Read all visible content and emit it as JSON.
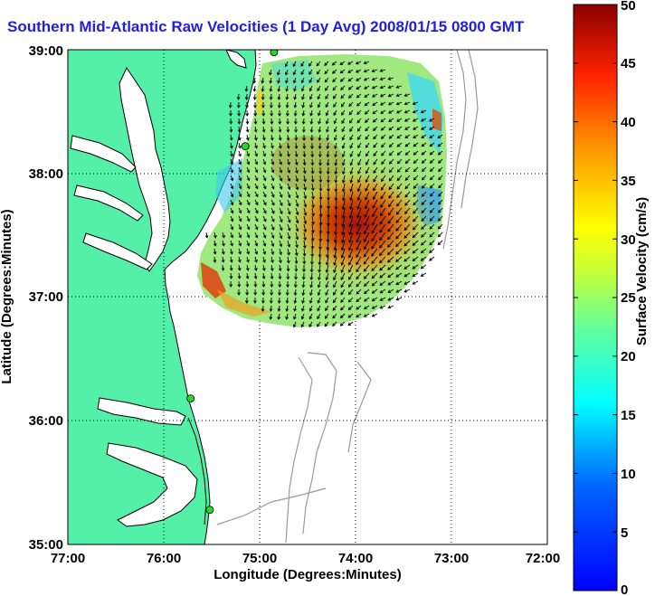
{
  "title": "Southern Mid-Atlantic Raw Velocities (1 Day Avg) 2008/01/15 0800 GMT",
  "map": {
    "xlabel": "Longitude (Degrees:Minutes)",
    "ylabel": "Latitude (Degrees:Minutes)",
    "x_ticks": [
      "77:00",
      "76:00",
      "75:00",
      "74:00",
      "73:00",
      "72:00"
    ],
    "y_ticks": [
      "39:00",
      "38:00",
      "37:00",
      "36:00",
      "35:00"
    ],
    "lon_range": [
      -77,
      -72
    ],
    "lat_range": [
      35,
      39
    ],
    "land_color": "#55f0a8",
    "coast_color": "#000000",
    "bathymetry_color": "#9a9a9a",
    "stations": [
      {
        "lon": -74.85,
        "lat": 38.98
      },
      {
        "lon": -75.15,
        "lat": 38.22
      },
      {
        "lon": -75.72,
        "lat": 36.18
      },
      {
        "lon": -75.52,
        "lat": 35.28
      }
    ],
    "station_color": "#22dd22",
    "grid": "dotted"
  },
  "colorbar": {
    "label": "Surface Velocity (cm/s)",
    "ticks": [
      "50",
      "45",
      "40",
      "35",
      "30",
      "25",
      "20",
      "15",
      "10",
      "5",
      "0"
    ],
    "min": 0,
    "max": 50,
    "colormap": "jet"
  }
}
